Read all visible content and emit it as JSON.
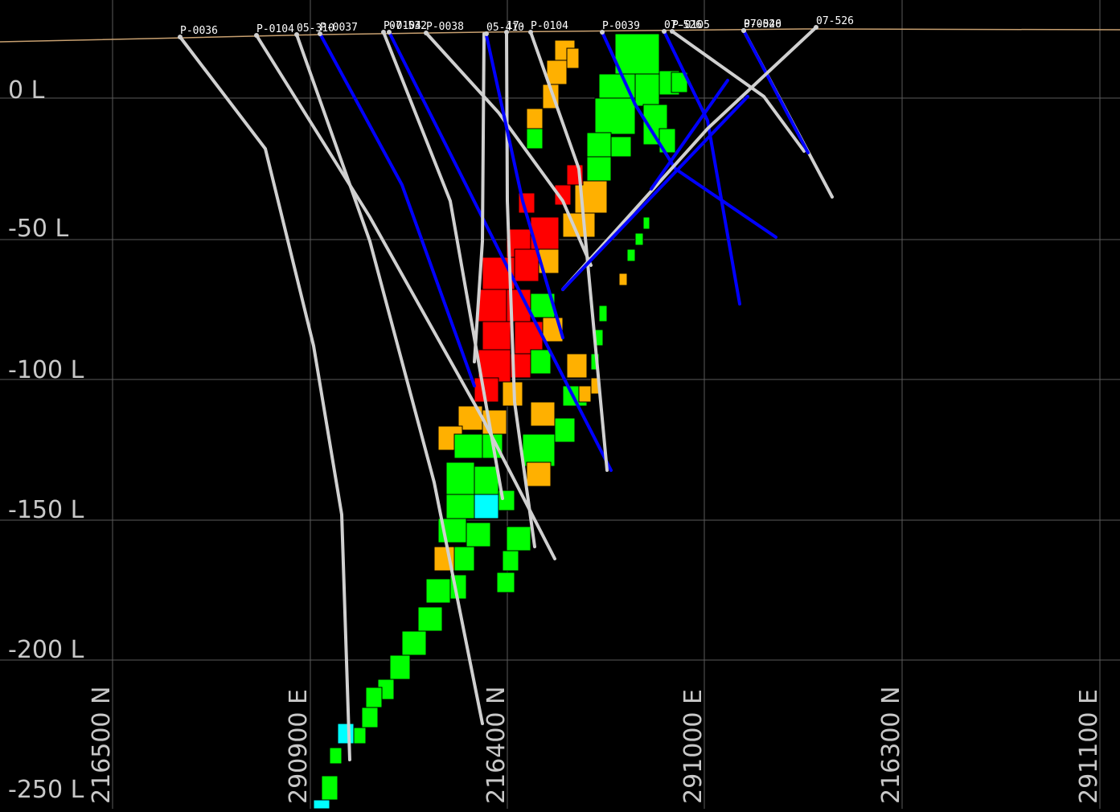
{
  "view": {
    "background": "#000000",
    "grid_color": "#5a5a5a",
    "topography_color": "#c8a070"
  },
  "level_labels": [
    "0 L",
    "-50 L",
    "-100 L",
    "-150 L",
    "-200 L",
    "-250 L"
  ],
  "coordinate_labels": [
    "216500 N",
    "290900 E",
    "216400 N",
    "291000 E",
    "216300 N",
    "291100 E"
  ],
  "drillhole_labels": [
    "P-0036",
    "P-0104",
    "05-310",
    "P-0037",
    "P-0104",
    "07-532",
    "P-0038",
    "05-410",
    "17-",
    "P-0104",
    "P-0039",
    "07-526",
    "P-0105",
    "07-526",
    "P-0040",
    "07-526"
  ],
  "block_legend_colors": {
    "high_grade": "#ff0000",
    "medium_grade": "#ffb000",
    "low_grade": "#00ff00",
    "trace": "#00ffff"
  },
  "trace_colors": {
    "hole": "#d0d0d0",
    "assay": "#0000ff"
  }
}
